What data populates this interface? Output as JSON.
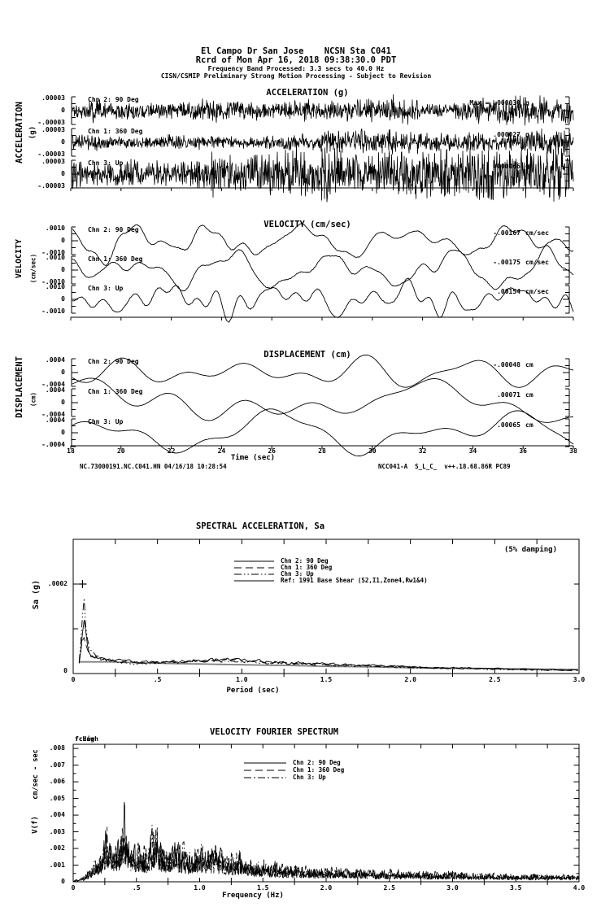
{
  "header": {
    "line1": "El Campo Dr San Jose    NCSN Sta C041",
    "line2": "Rcrd of Mon Apr 16, 2018 09:38:30.0 PDT",
    "line3": "Frequency Band Processed: 3.3 secs to 40.0 Hz",
    "line4": "CISN/CSMIP Preliminary Strong Motion Processing - Subject to Revision"
  },
  "footer": {
    "left": "NC.73000191.NC.C041.HN 04/16/18 10:28:54",
    "right": "NCC041-A  S_L_C_  v++.18.68.86R PC89"
  },
  "chart_data": [
    {
      "id": "acceleration",
      "type": "line",
      "title": "ACCELERATION (g)",
      "side_label": "ACCELERATION",
      "side_units": "(g)",
      "x_range_sec": [
        18,
        38
      ],
      "full_scale": 3e-05,
      "channels": [
        {
          "label": "Chn 2: 90 Deg",
          "yticks": [
            ".00003",
            "0",
            "-.00003"
          ],
          "peak_text": "Max = .000030",
          "peak_units": "g",
          "peak_value": 3e-05,
          "waveform": "broadband-noise"
        },
        {
          "label": "Chn 1: 360 Deg",
          "yticks": [
            ".00003",
            "0",
            "-.00003"
          ],
          "peak_text": ".000027",
          "peak_units": "g",
          "peak_value": 2.7e-05,
          "waveform": "broadband-noise"
        },
        {
          "label": "Chn 3: Up",
          "yticks": [
            ".00003",
            "0",
            "-.00003"
          ],
          "peak_text": ".000066",
          "peak_units": "g",
          "peak_value": 6.6e-05,
          "waveform": "broadband-noise"
        }
      ]
    },
    {
      "id": "velocity",
      "type": "line",
      "title": "VELOCITY (cm/sec)",
      "side_label": "VELOCITY",
      "side_units": "(cm/sec)",
      "x_range_sec": [
        18,
        38
      ],
      "full_scale": 0.001,
      "channels": [
        {
          "label": "Chn 2: 90 Deg",
          "yticks": [
            ".0010",
            "0",
            "-.0010"
          ],
          "peak_text": "-.00167",
          "peak_units": "cm/sec",
          "peak_value": -0.00167,
          "waveform": "low-frequency"
        },
        {
          "label": "Chn 1: 360 Deg",
          "yticks": [
            ".0010",
            "0",
            "-.0010"
          ],
          "peak_text": "-.00175",
          "peak_units": "cm/sec",
          "peak_value": -0.00175,
          "waveform": "low-frequency"
        },
        {
          "label": "Chn 3: Up",
          "yticks": [
            ".0010",
            "0",
            "-.0010"
          ],
          "peak_text": ".00154",
          "peak_units": "cm/sec",
          "peak_value": 0.00154,
          "waveform": "low-frequency"
        }
      ]
    },
    {
      "id": "displacement",
      "type": "line",
      "title": "DISPLACEMENT (cm)",
      "side_label": "DISPLACEMENT",
      "side_units": "(cm)",
      "x_range_sec": [
        18,
        38
      ],
      "xticks": [
        "18",
        "20",
        "22",
        "24",
        "26",
        "28",
        "30",
        "32",
        "34",
        "36",
        "38"
      ],
      "xlabel": "Time (sec)",
      "full_scale": 0.0004,
      "channels": [
        {
          "label": "Chn 2: 90 Deg",
          "yticks": [
            ".0004",
            "0",
            "-.0004"
          ],
          "peak_text": "-.00048",
          "peak_units": "cm",
          "peak_value": -0.00048,
          "waveform": "very-low-frequency"
        },
        {
          "label": "Chn 1: 360 Deg",
          "yticks": [
            ".0004",
            "0",
            "-.0004"
          ],
          "peak_text": ".00071",
          "peak_units": "cm",
          "peak_value": 0.00071,
          "waveform": "very-low-frequency"
        },
        {
          "label": "Chn 3: Up",
          "yticks": [
            ".0004",
            "0",
            "-.0004"
          ],
          "peak_text": ".00065",
          "peak_units": "cm",
          "peak_value": 0.00065,
          "waveform": "very-low-frequency"
        }
      ]
    },
    {
      "id": "spectral_acceleration",
      "type": "line",
      "title": "SPECTRAL ACCELERATION, Sa",
      "damping_note": "(5% damping)",
      "ylabel": "Sa (g)",
      "xlabel": "Period (sec)",
      "xlim": [
        0,
        3.0
      ],
      "ylim": [
        0,
        0.0003
      ],
      "ytick_labels": [
        {
          "value": 0.0002,
          "label": ".0002"
        },
        {
          "value": 0,
          "label": "0"
        }
      ],
      "xtick_labels": [
        "0",
        ".5",
        "1.0",
        "1.5",
        "2.0",
        "2.5",
        "3.0"
      ],
      "peak_marker": {
        "period_sec": 0.055,
        "sa_g": 0.0002
      },
      "y_scale_g": 1e-06,
      "x_points": [
        0.03,
        0.05,
        0.06,
        0.08,
        0.1,
        0.13,
        0.17,
        0.22,
        0.3,
        0.4,
        0.5,
        0.65,
        0.8,
        0.95,
        1.1,
        1.3,
        1.5,
        1.75,
        2.0,
        2.25,
        2.5,
        2.75,
        3.0
      ],
      "series": [
        {
          "name": "Chn 2: 90 Deg",
          "dash": "solid",
          "sa_micro_g": [
            12,
            60,
            125,
            70,
            46,
            38,
            33,
            30,
            28,
            26,
            25,
            27,
            30,
            31,
            28,
            24,
            21,
            18,
            15,
            13,
            11,
            9,
            8
          ]
        },
        {
          "name": "Chn 1: 360 Deg",
          "dash": "longdash",
          "sa_micro_g": [
            10,
            65,
            100,
            64,
            44,
            37,
            32,
            29,
            27,
            25,
            24,
            26,
            29,
            30,
            27,
            23,
            20,
            17,
            14,
            12,
            10,
            8,
            7
          ]
        },
        {
          "name": "Chn 3: Up",
          "dash": "dashdotdot",
          "sa_micro_g": [
            8,
            90,
            200,
            78,
            50,
            40,
            33,
            29,
            26,
            24,
            23,
            25,
            27,
            27,
            25,
            22,
            19,
            16,
            13,
            11,
            9,
            8,
            7
          ]
        },
        {
          "name": "Ref: 1991 Base Shear (S2,I1,Zone4,Rw1&4)",
          "dash": "solid",
          "reference": true,
          "thick": true,
          "color": "#808080",
          "sa_micro_g": [
            26,
            26,
            26,
            26,
            26,
            26,
            26,
            26,
            25,
            24,
            23,
            22,
            21,
            20,
            19,
            18,
            16,
            15,
            13,
            12,
            11,
            10,
            9
          ]
        }
      ],
      "legend": [
        {
          "label": "Chn 2: 90 Deg",
          "dash": "solid"
        },
        {
          "label": "Chn 1: 360 Deg",
          "dash": "longdash"
        },
        {
          "label": "Chn 3: Up",
          "dash": "dashdotdot"
        },
        {
          "label": "Ref: 1991 Base Shear (S2,I1,Zone4,Rw1&4)",
          "dash": "solid",
          "thick": true,
          "color": "#808080"
        }
      ]
    },
    {
      "id": "velocity_fourier_spectrum",
      "type": "line",
      "title": "VELOCITY FOURIER SPECTRUM",
      "corner_labels": [
        "fcLow",
        "fcHigh"
      ],
      "ylabel": "V(f)",
      "ylabel_units": "cm/sec - sec",
      "xlabel": "Frequency (Hz)",
      "xlim": [
        0,
        4.0
      ],
      "ylim": [
        0,
        0.008
      ],
      "ytick_labels": [
        ".008",
        ".007",
        ".006",
        ".005",
        ".004",
        ".003",
        ".002",
        ".001",
        "0"
      ],
      "xtick_labels": [
        "0",
        ".5",
        "1.0",
        "1.5",
        "2.0",
        "2.5",
        "3.0",
        "3.5",
        "4.0"
      ],
      "y_scale": 0.001,
      "envelope": {
        "x": [
          0,
          0.08,
          0.12,
          0.16,
          0.2,
          0.24,
          0.27,
          0.3,
          0.33,
          0.36,
          0.4,
          0.44,
          0.48,
          0.52,
          0.56,
          0.6,
          0.65,
          0.7,
          0.75,
          0.8,
          0.85,
          0.9,
          0.95,
          1.0,
          1.05,
          1.1,
          1.2,
          1.3,
          1.4,
          1.5,
          1.6,
          1.8,
          2.0,
          2.2,
          2.5,
          2.8,
          3.0,
          3.3,
          3.6,
          4.0
        ],
        "y": [
          0.05,
          0.4,
          0.9,
          1.6,
          2.3,
          3.1,
          4.6,
          2.9,
          3.3,
          3.1,
          6.3,
          3.3,
          2.9,
          3.1,
          2.7,
          2.9,
          5.0,
          3.3,
          2.7,
          3.6,
          2.9,
          2.6,
          2.3,
          3.3,
          2.5,
          2.9,
          2.1,
          2.3,
          1.7,
          1.6,
          1.4,
          1.2,
          1.1,
          1.0,
          0.9,
          0.8,
          0.75,
          0.65,
          0.6,
          0.55
        ]
      },
      "legend": [
        {
          "label": "Chn 2: 90 Deg",
          "dash": "solid"
        },
        {
          "label": "Chn 1: 360 Deg",
          "dash": "longdash"
        },
        {
          "label": "Chn 3: Up",
          "dash": "dashdot"
        }
      ]
    }
  ]
}
